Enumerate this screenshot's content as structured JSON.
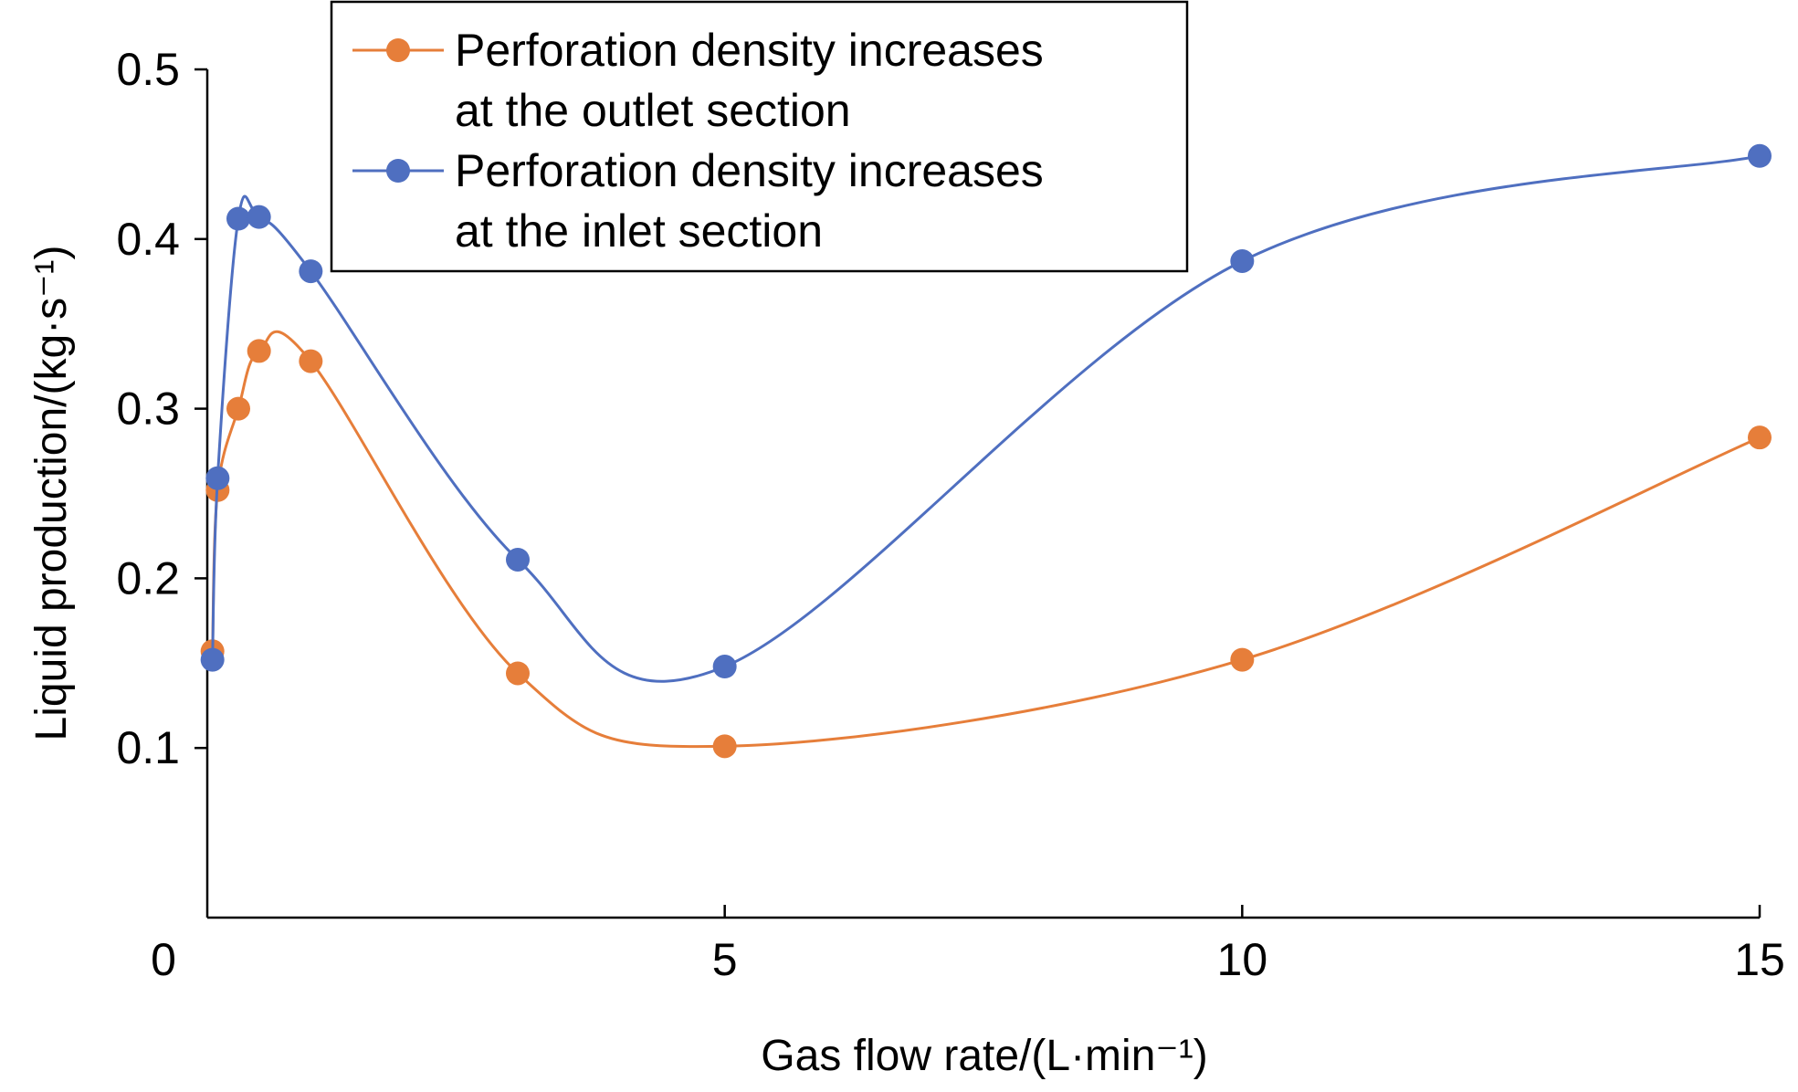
{
  "chart_data": {
    "type": "line",
    "title": "",
    "xlabel": "Gas flow rate/(L·min⁻¹)",
    "ylabel": "Liquid production/(kg·s⁻¹)",
    "xlim": [
      0,
      15
    ],
    "ylim": [
      0,
      0.5
    ],
    "xticks": [
      "0",
      "5",
      "10",
      "15"
    ],
    "yticks": [
      "0.1",
      "0.2",
      "0.3",
      "0.4",
      "0.5"
    ],
    "grid": false,
    "legend": "top-center",
    "series": [
      {
        "name_lines": [
          "Perforation density increases",
          "at the outlet section"
        ],
        "color": "#E67E3A",
        "x": [
          0.05,
          0.1,
          0.3,
          0.5,
          1.0,
          3.0,
          5.0,
          10.0,
          15.0
        ],
        "y": [
          0.157,
          0.252,
          0.3,
          0.334,
          0.328,
          0.144,
          0.101,
          0.152,
          0.283
        ]
      },
      {
        "name_lines": [
          "Perforation density increases",
          "at the inlet section"
        ],
        "color": "#4F6FC0",
        "x": [
          0.05,
          0.1,
          0.3,
          0.5,
          1.0,
          3.0,
          5.0,
          10.0,
          15.0
        ],
        "y": [
          0.152,
          0.259,
          0.412,
          0.413,
          0.381,
          0.211,
          0.148,
          0.387,
          0.449
        ]
      }
    ]
  }
}
